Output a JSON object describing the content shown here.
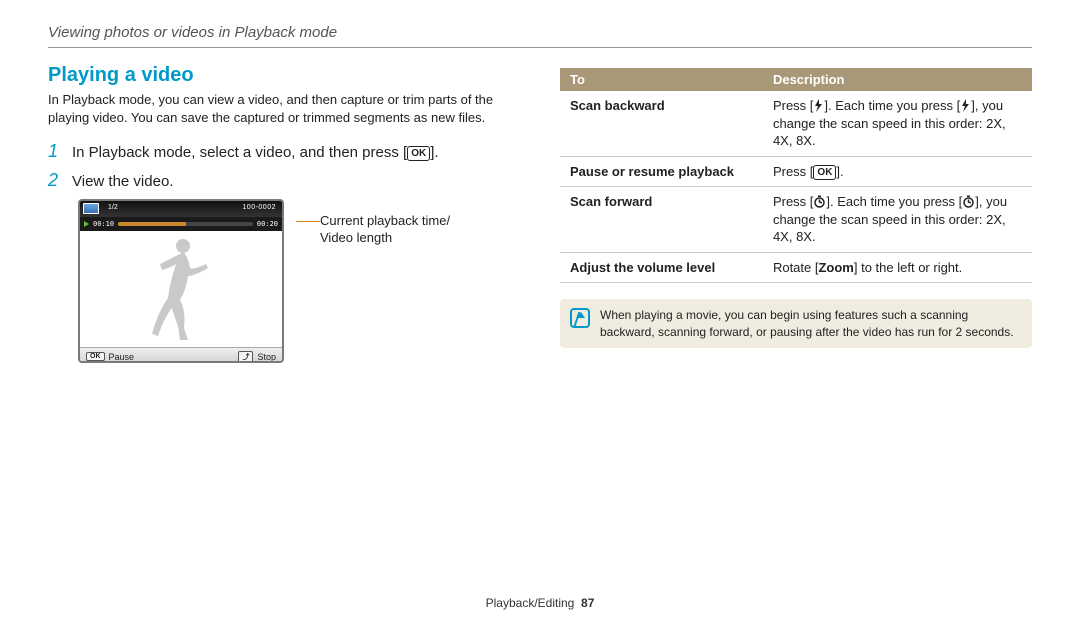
{
  "breadcrumb": "Viewing photos or videos in Playback mode",
  "heading": "Playing a video",
  "intro": "In Playback mode, you can view a video, and then capture or trim parts of the playing video. You can save the captured or trimmed segments as new files.",
  "steps": [
    {
      "num": "1",
      "text_a": "In Playback mode, select a video, and then press [",
      "text_b": "]."
    },
    {
      "num": "2",
      "text_a": "View the video."
    }
  ],
  "ok_label": "OK",
  "camera": {
    "top_thumb": true,
    "top_left": "1/2",
    "top_right": "100-0002",
    "time_left": "00:10",
    "time_right": "00:20",
    "progress_pct": 50,
    "pause_label": "Pause",
    "stop_label": "Stop",
    "btn_ok": "OK"
  },
  "camera_caption_line1": "Current playback time/",
  "camera_caption_line2": "Video length",
  "table": {
    "col_to": "To",
    "col_desc": "Description",
    "rows": [
      {
        "to": "Scan backward",
        "desc_parts": [
          "Press [",
          "FLASH",
          "]. Each time you press [",
          "FLASH",
          "], you change the scan speed in this order: 2X, 4X, 8X."
        ]
      },
      {
        "to": "Pause or resume playback",
        "desc_parts": [
          "Press [",
          "OK",
          "]."
        ]
      },
      {
        "to": "Scan forward",
        "desc_parts": [
          "Press [",
          "TIMER",
          "]. Each time you press [",
          "TIMER",
          "], you change the scan speed in this order: 2X, 4X, 8X."
        ]
      },
      {
        "to": "Adjust the volume level",
        "desc_parts": [
          "Rotate [",
          "BOLD:Zoom",
          "] to the left or right."
        ]
      }
    ]
  },
  "note": "When playing a movie, you can begin using features such a scanning backward, scanning forward, or pausing after the video has run for 2 seconds.",
  "footer_section": "Playback/Editing",
  "footer_page": "87",
  "colors": {
    "accent": "#0099c8",
    "table_header": "#a89878",
    "note_bg": "#f0ece0",
    "pointer": "#e08a2a"
  }
}
